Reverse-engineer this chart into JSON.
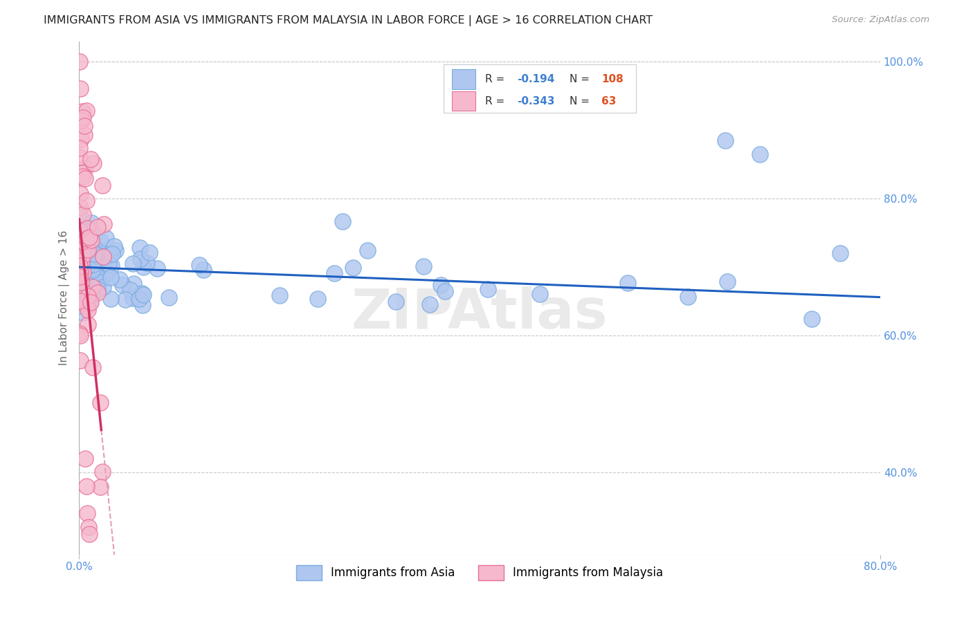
{
  "title": "IMMIGRANTS FROM ASIA VS IMMIGRANTS FROM MALAYSIA IN LABOR FORCE | AGE > 16 CORRELATION CHART",
  "source": "Source: ZipAtlas.com",
  "ylabel": "In Labor Force | Age > 16",
  "xlim": [
    0.0,
    0.8
  ],
  "ylim": [
    0.28,
    1.03
  ],
  "ytick_right_labels": [
    "100.0%",
    "80.0%",
    "60.0%",
    "40.0%"
  ],
  "ytick_right_values": [
    1.0,
    0.8,
    0.6,
    0.4
  ],
  "legend_r_asia": "-0.194",
  "legend_n_asia": "108",
  "legend_r_malaysia": "-0.343",
  "legend_n_malaysia": "63",
  "asia_color": "#aec6f0",
  "asia_edge": "#7aabdf",
  "malaysia_color": "#f5b8cc",
  "malaysia_edge": "#e87098",
  "trend_asia_color": "#2060c0",
  "trend_malaysia_solid_color": "#d03060",
  "trend_malaysia_dash_color": "#e0a0b8",
  "watermark": "ZIPAtlas",
  "background_color": "#ffffff",
  "grid_color": "#c8c8c8",
  "tick_label_color": "#5090e0",
  "legend_r_color": "#4080d0",
  "legend_n_color": "#e05020",
  "asia_seed": 42,
  "malaysia_seed": 99
}
